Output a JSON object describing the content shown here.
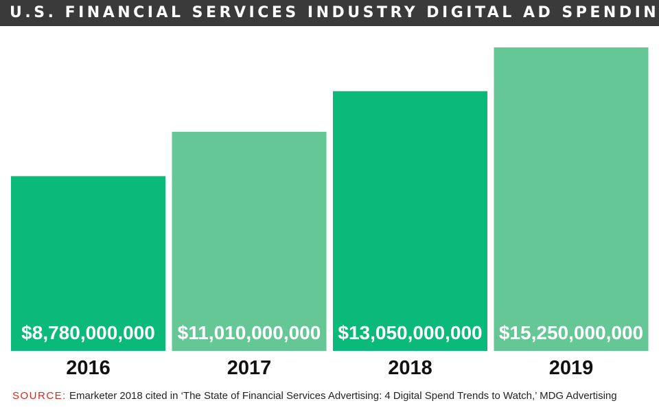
{
  "title": "U.S. FINANCIAL SERVICES INDUSTRY DIGITAL AD SPENDING",
  "source": {
    "label": "SOURCE:",
    "text": "Emarketer 2018 cited in ‘The State of Financial Services Advertising: 4 Digital Spend Trends to Watch,’ MDG Advertising"
  },
  "colors": {
    "title_bg": "#3a3a3a",
    "bar_dark": "#0bb97a",
    "bar_light": "#66c796",
    "source_label": "#e2231a"
  },
  "chart_data": {
    "type": "bar",
    "title": "U.S. FINANCIAL SERVICES INDUSTRY DIGITAL AD SPENDING",
    "categories": [
      "2016",
      "2017",
      "2018",
      "2019"
    ],
    "values": [
      8780000000,
      11010000000,
      13050000000,
      15250000000
    ],
    "data_labels": [
      "$8,780,000,000",
      "$11,010,000,000",
      "$13,050,000,000",
      "$15,250,000,000"
    ],
    "bar_colors": [
      "#0bb97a",
      "#66c796",
      "#0bb97a",
      "#66c796"
    ],
    "xlabel": "",
    "ylabel": "",
    "grid": false,
    "legend": "none"
  }
}
